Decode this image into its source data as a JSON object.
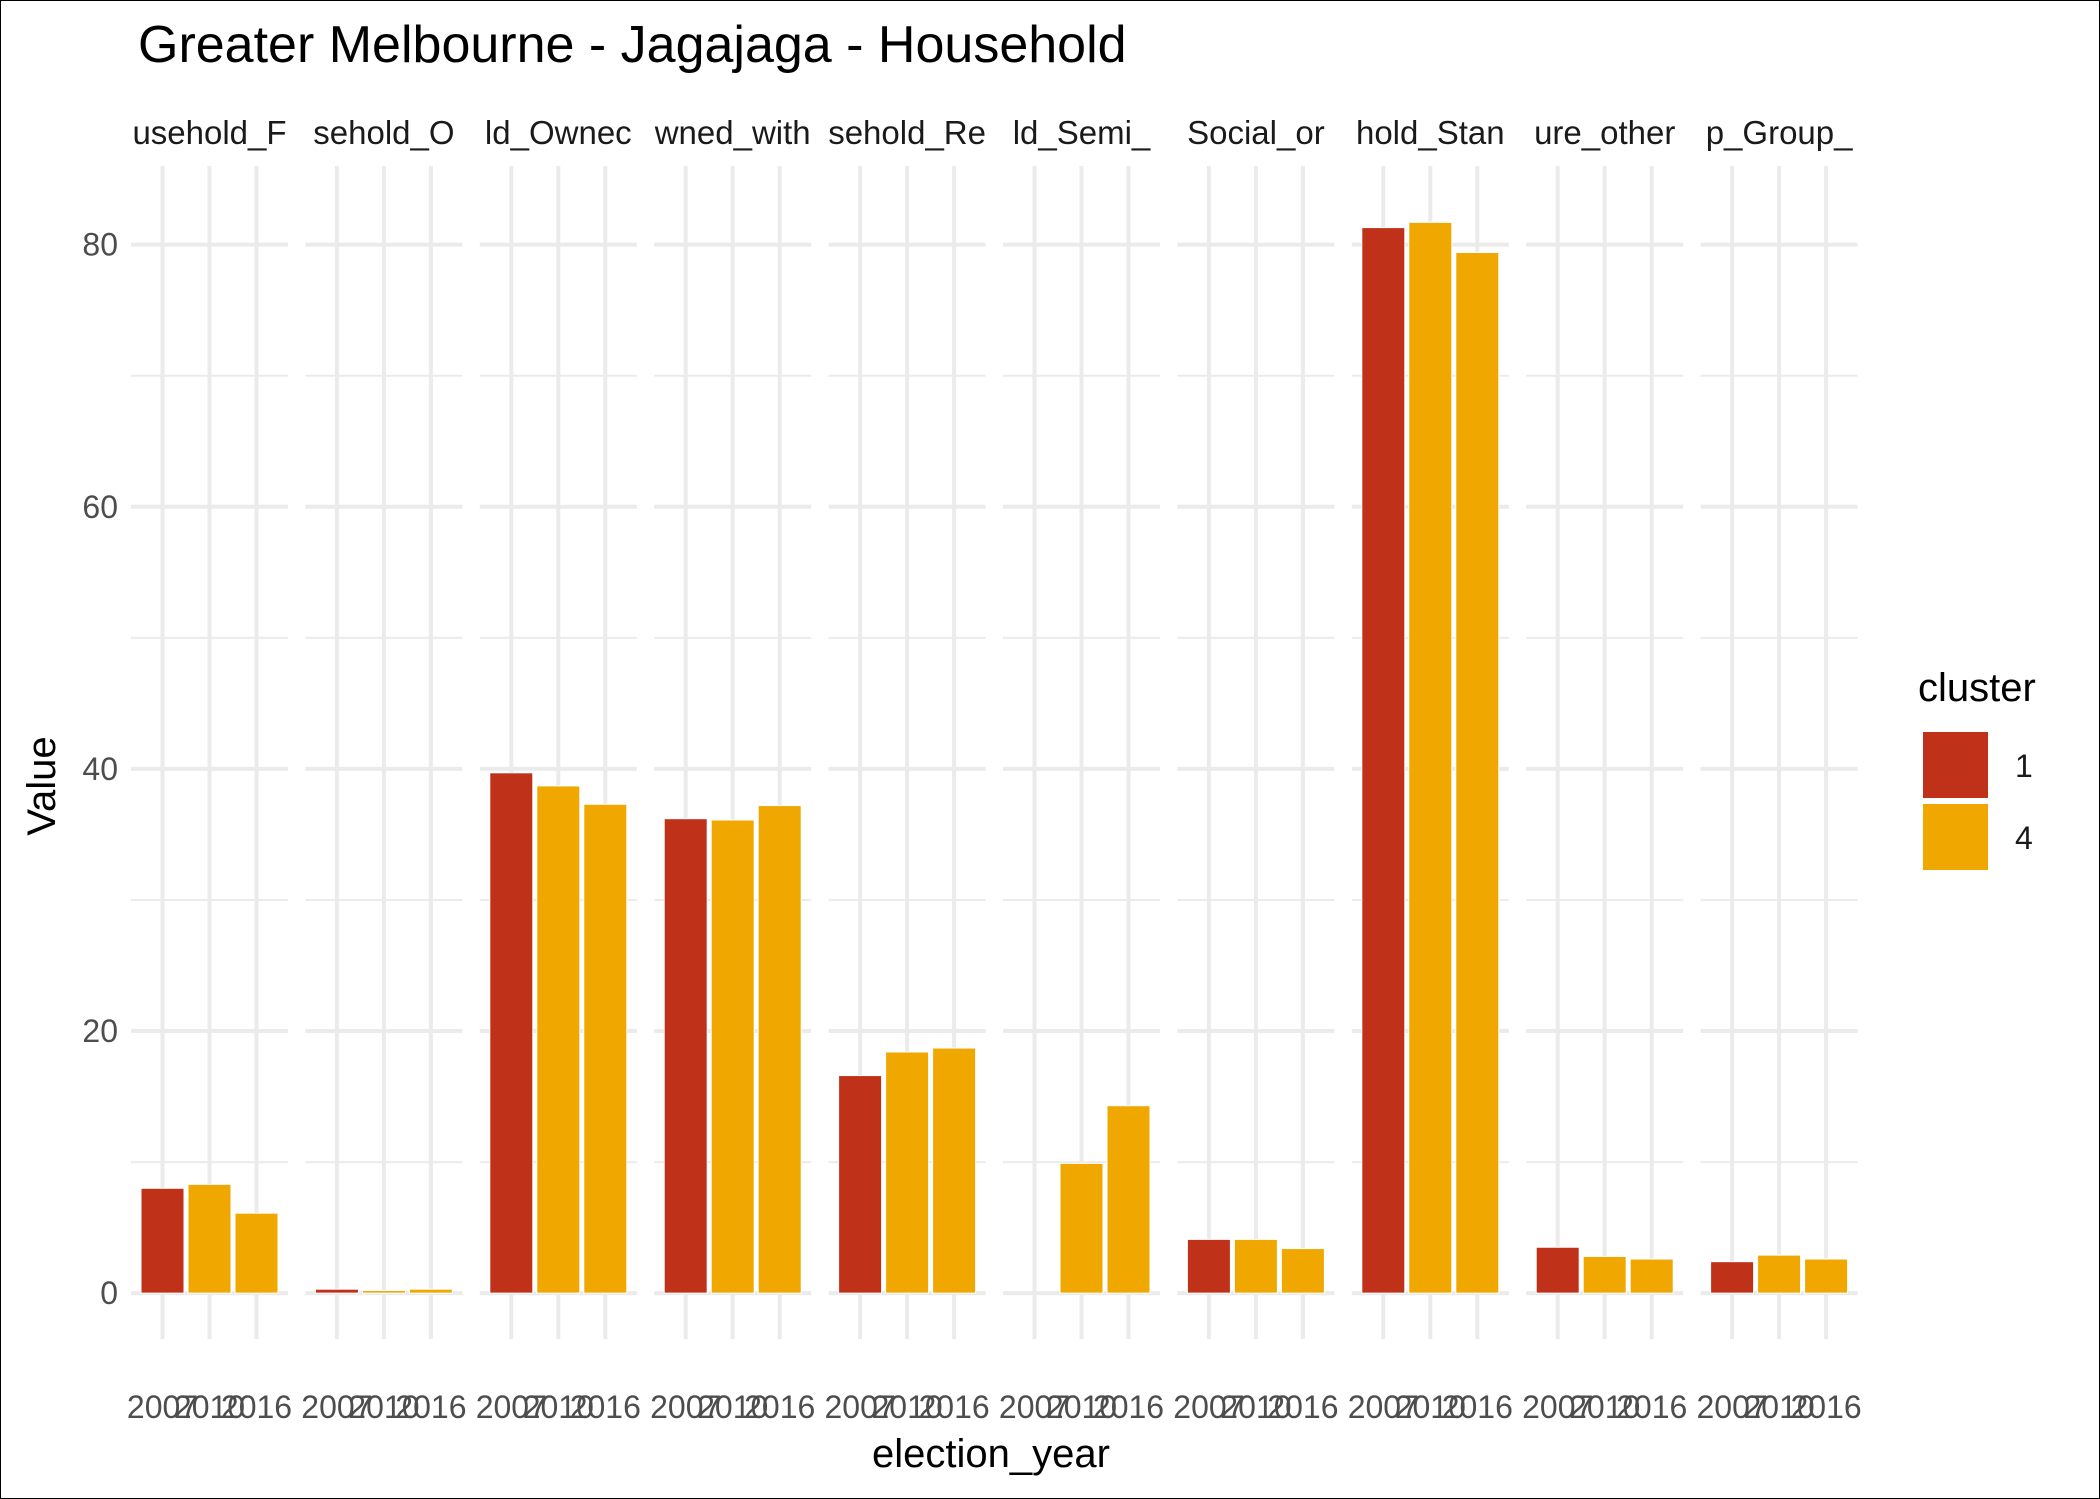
{
  "chart_data": {
    "type": "bar",
    "title": "Greater Melbourne - Jagajaga - Household",
    "xlabel": "election_year",
    "ylabel": "Value",
    "ylim": [
      -3.5,
      86
    ],
    "y_ticks": [
      0,
      20,
      40,
      60,
      80
    ],
    "grid": true,
    "legend": {
      "title": "cluster",
      "position": "right",
      "entries": [
        "1",
        "4"
      ]
    },
    "categories": [
      "2007",
      "2010",
      "2016"
    ],
    "cluster_colors": {
      "1": "#C0311A",
      "4": "#F0A800"
    },
    "panels": [
      {
        "label": "usehold_F",
        "values": [
          8.0,
          8.3,
          6.1
        ],
        "clusters": [
          "1",
          "4",
          "4"
        ]
      },
      {
        "label": "sehold_O",
        "values": [
          0.3,
          0.2,
          0.3
        ],
        "clusters": [
          "1",
          "4",
          "4"
        ]
      },
      {
        "label": "ld_Ownec",
        "values": [
          39.7,
          38.7,
          37.3
        ],
        "clusters": [
          "1",
          "4",
          "4"
        ]
      },
      {
        "label": "wned_with",
        "values": [
          36.2,
          36.1,
          37.2
        ],
        "clusters": [
          "1",
          "4",
          "4"
        ]
      },
      {
        "label": "sehold_Re",
        "values": [
          16.6,
          18.4,
          18.7
        ],
        "clusters": [
          "1",
          "4",
          "4"
        ]
      },
      {
        "label": "ld_Semi_",
        "values": [
          null,
          9.9,
          14.3
        ],
        "clusters": [
          "1",
          "4",
          "4"
        ]
      },
      {
        "label": "Social_or",
        "values": [
          4.1,
          4.1,
          3.4
        ],
        "clusters": [
          "1",
          "4",
          "4"
        ]
      },
      {
        "label": "hold_Stan",
        "values": [
          81.3,
          81.7,
          79.4
        ],
        "clusters": [
          "1",
          "4",
          "4"
        ]
      },
      {
        "label": "ure_other",
        "values": [
          3.5,
          2.8,
          2.6
        ],
        "clusters": [
          "1",
          "4",
          "4"
        ]
      },
      {
        "label": "p_Group_",
        "values": [
          2.4,
          2.9,
          2.6
        ],
        "clusters": [
          "1",
          "4",
          "4"
        ]
      }
    ]
  }
}
